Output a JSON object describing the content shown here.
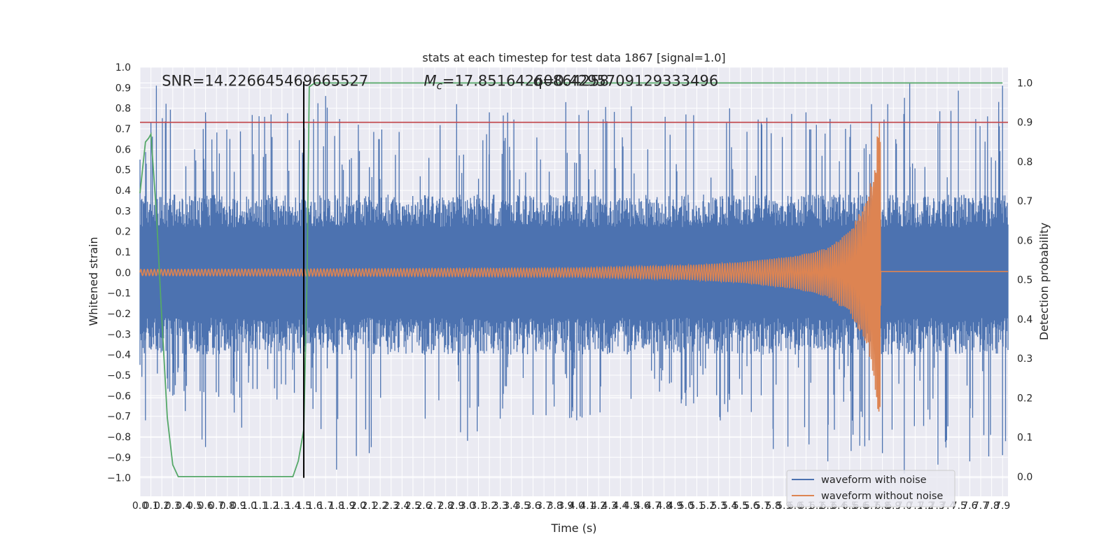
{
  "chart_data": {
    "type": "line",
    "title": "stats at each timestep for test data 1867 [signal=1.0]",
    "xlabel": "Time (s)",
    "ylabel": "Whitened strain",
    "y2label": "Detection probability",
    "xlim": [
      0.0,
      7.95
    ],
    "ylim": [
      -1.09,
      1.0
    ],
    "y2lim": [
      -0.05,
      1.04
    ],
    "grid": true,
    "legend_position": "lower right",
    "x_ticks": [
      "0.0",
      "0.1",
      "0.2",
      "0.3",
      "0.4",
      "0.5",
      "0.6",
      "0.7",
      "0.8",
      "0.9",
      "1.0",
      "1.1",
      "1.2",
      "1.3",
      "1.4",
      "1.5",
      "1.6",
      "1.7",
      "1.8",
      "1.9",
      "2.0",
      "2.1",
      "2.2",
      "2.3",
      "2.4",
      "2.5",
      "2.6",
      "2.7",
      "2.8",
      "2.9",
      "3.0",
      "3.1",
      "3.2",
      "3.3",
      "3.4",
      "3.5",
      "3.6",
      "3.7",
      "3.8",
      "3.9",
      "4.0",
      "4.1",
      "4.2",
      "4.3",
      "4.4",
      "4.5",
      "4.6",
      "4.7",
      "4.8",
      "4.9",
      "5.0",
      "5.1",
      "5.2",
      "5.3",
      "5.4",
      "5.5",
      "5.6",
      "5.7",
      "5.8",
      "5.9",
      "6.0",
      "6.1",
      "6.2",
      "6.3",
      "6.4",
      "6.5",
      "6.6",
      "6.7",
      "6.8",
      "6.9",
      "7.0",
      "7.1",
      "7.2",
      "7.3",
      "7.4",
      "7.5",
      "7.6",
      "7.7",
      "7.8",
      "7.9"
    ],
    "y_ticks": [
      "1.0",
      "0.9",
      "0.8",
      "0.7",
      "0.6",
      "0.5",
      "0.4",
      "0.3",
      "0.2",
      "0.1",
      "0.0",
      "−0.1",
      "−0.2",
      "−0.3",
      "−0.4",
      "−0.5",
      "−0.6",
      "−0.7",
      "−0.8",
      "−0.9",
      "−1.0"
    ],
    "y2_ticks": [
      "1.0",
      "0.9",
      "0.8",
      "0.7",
      "0.6",
      "0.5",
      "0.4",
      "0.3",
      "0.2",
      "0.1",
      "0.0"
    ],
    "series": [
      {
        "name": "waveform with noise",
        "color": "#4c72b0",
        "style": "dense noisy strain, envelope approx ±0.5 with spikes to ±0.93",
        "envelope_upper": [
          [
            0.0,
            0.55
          ],
          [
            0.1,
            0.73
          ],
          [
            0.15,
            0.91
          ],
          [
            0.5,
            0.6
          ],
          [
            0.6,
            0.78
          ],
          [
            1.2,
            0.77
          ],
          [
            1.7,
            0.86
          ],
          [
            2.0,
            0.72
          ],
          [
            2.9,
            0.82
          ],
          [
            3.2,
            0.78
          ],
          [
            3.9,
            0.83
          ],
          [
            4.5,
            0.81
          ],
          [
            5.0,
            0.77
          ],
          [
            5.4,
            0.8
          ],
          [
            6.1,
            0.78
          ],
          [
            6.7,
            0.82
          ],
          [
            7.05,
            0.92
          ],
          [
            7.9,
            0.91
          ]
        ],
        "envelope_lower": [
          [
            0.0,
            -0.45
          ],
          [
            0.05,
            -0.72
          ],
          [
            0.3,
            -0.6
          ],
          [
            0.6,
            -0.85
          ],
          [
            1.5,
            -0.62
          ],
          [
            1.8,
            -0.96
          ],
          [
            2.1,
            -0.88
          ],
          [
            3.0,
            -0.82
          ],
          [
            4.0,
            -0.72
          ],
          [
            5.0,
            -0.65
          ],
          [
            5.8,
            -0.86
          ],
          [
            6.3,
            -0.92
          ],
          [
            6.8,
            -0.88
          ],
          [
            7.0,
            -0.98
          ],
          [
            7.6,
            -0.92
          ],
          [
            7.9,
            -0.89
          ]
        ]
      },
      {
        "name": "waveform without noise",
        "color": "#dd8452",
        "style": "chirp: oscillation growing in amplitude and frequency, merger near t=6.78 s, flat afterwards",
        "amplitude": [
          [
            0.0,
            0.015
          ],
          [
            2.0,
            0.018
          ],
          [
            4.0,
            0.022
          ],
          [
            5.0,
            0.035
          ],
          [
            5.5,
            0.05
          ],
          [
            6.0,
            0.08
          ],
          [
            6.3,
            0.12
          ],
          [
            6.5,
            0.2
          ],
          [
            6.65,
            0.35
          ],
          [
            6.72,
            0.5
          ],
          [
            6.76,
            0.7
          ],
          [
            6.78,
            0.75
          ],
          [
            6.79,
            0.0
          ]
        ],
        "post_merger_value": 0.005
      }
    ],
    "detection_probability": {
      "axis": "right",
      "color": "#55a868",
      "x": [
        0.0,
        0.05,
        0.08,
        0.1,
        0.15,
        0.2,
        0.25,
        0.3,
        0.35,
        0.4,
        0.5,
        0.6,
        0.8,
        1.0,
        1.2,
        1.4,
        1.45,
        1.5,
        1.53,
        1.55,
        1.6,
        2.0,
        3.0,
        4.0,
        5.0,
        6.0,
        7.0,
        7.9
      ],
      "y": [
        0.72,
        0.85,
        0.86,
        0.87,
        0.67,
        0.4,
        0.15,
        0.03,
        0.0,
        0.0,
        0.0,
        0.0,
        0.0,
        0.0,
        0.0,
        0.0,
        0.04,
        0.12,
        0.5,
        0.99,
        1.0,
        1.0,
        1.0,
        1.0,
        1.0,
        1.0,
        1.0,
        1.0
      ]
    },
    "threshold": {
      "axis": "right",
      "value": 0.9,
      "color": "#c44e52"
    },
    "vertical_marker": {
      "x": 1.5,
      "y_range": [
        -1.0,
        0.93
      ],
      "color": "#000000"
    },
    "annotations": [
      {
        "text": "SNR=14.226645469665527",
        "x": 0.2,
        "y": 0.91
      },
      {
        "text": "M_c=17.85164260864258",
        "x": 2.6,
        "y": 0.91
      },
      {
        "text": "q=0.4295709129333496",
        "x": 3.6,
        "y": 0.91
      }
    ]
  }
}
